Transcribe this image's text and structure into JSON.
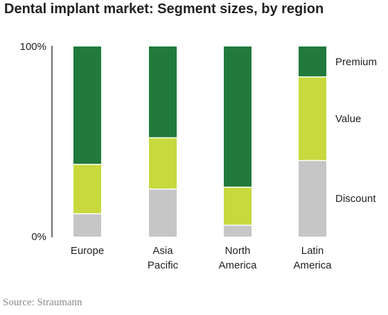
{
  "chart_data": {
    "type": "bar",
    "stacked": true,
    "normalized": true,
    "title": "Dental implant market: Segment sizes, by region",
    "source": "Source: Straumann",
    "y_tick_labels": [
      "0%",
      "100%"
    ],
    "ylim": [
      0,
      100
    ],
    "grid": false,
    "legend_position": "right",
    "categories": [
      {
        "lines": [
          "Europe"
        ]
      },
      {
        "lines": [
          "Asia",
          "Pacific"
        ]
      },
      {
        "lines": [
          "North",
          "America"
        ]
      },
      {
        "lines": [
          "Latin",
          "America"
        ]
      }
    ],
    "series": [
      {
        "name": "Discount",
        "color": "#c6c6c6",
        "values": [
          12,
          25,
          6,
          40
        ]
      },
      {
        "name": "Value",
        "color": "#c7d93d",
        "values": [
          26,
          27,
          20,
          44
        ]
      },
      {
        "name": "Premium",
        "color": "#217a3c",
        "values": [
          62,
          48,
          74,
          16
        ]
      }
    ]
  }
}
